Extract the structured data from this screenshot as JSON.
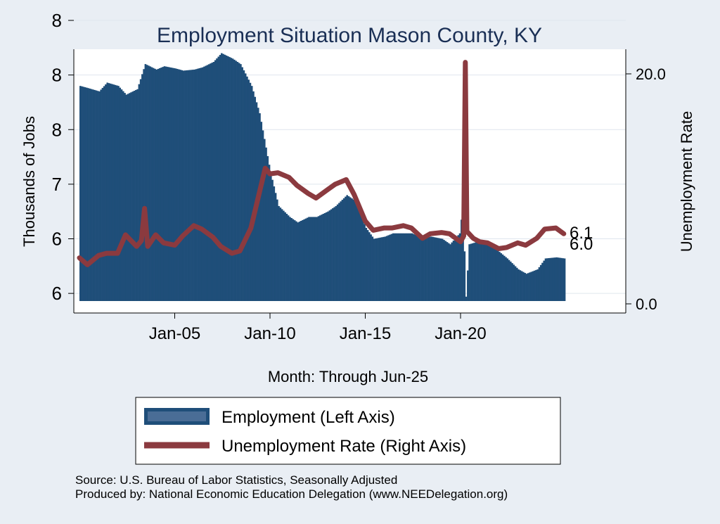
{
  "chart_data": {
    "type": "bar+line",
    "title": "Employment Situation Mason  County, KY",
    "xlabel": "Month: Through Jun-25",
    "ylabel_left": "Thousands of Jobs",
    "ylabel_right": "Unemployment Rate",
    "x_range": [
      "Jan-00",
      "Jun-25"
    ],
    "x_ticks": [
      "Jan-05",
      "Jan-10",
      "Jan-15",
      "Jan-20"
    ],
    "y_left_range": [
      5.93,
      8.12
    ],
    "y_left_tick_values": [
      6.0,
      6.5,
      7.0,
      7.5,
      8.0,
      8.5
    ],
    "y_left_tick_labels": [
      "6",
      "6",
      "7",
      "8",
      "8",
      "8"
    ],
    "y_right_range": [
      0,
      22.4
    ],
    "y_right_ticks": [
      0.0,
      20.0
    ],
    "y_right_tick_labels": [
      "0.0",
      "20.0"
    ],
    "grid": true,
    "legend_position": "bottom",
    "series": [
      {
        "name": "Employment (Left Axis)",
        "type": "bar",
        "axis": "left",
        "color": "#1f4e79",
        "points": [
          [
            "2000-01",
            7.9
          ],
          [
            "2000-06",
            7.88
          ],
          [
            "2001-01",
            7.85
          ],
          [
            "2001-06",
            7.93
          ],
          [
            "2002-01",
            7.9
          ],
          [
            "2002-06",
            7.82
          ],
          [
            "2003-01",
            7.87
          ],
          [
            "2003-06",
            8.1
          ],
          [
            "2004-01",
            8.05
          ],
          [
            "2004-06",
            8.08
          ],
          [
            "2005-01",
            8.06
          ],
          [
            "2005-06",
            8.04
          ],
          [
            "2006-01",
            8.05
          ],
          [
            "2006-06",
            8.07
          ],
          [
            "2007-01",
            8.12
          ],
          [
            "2007-06",
            8.2
          ],
          [
            "2008-01",
            8.15
          ],
          [
            "2008-06",
            8.1
          ],
          [
            "2009-01",
            7.9
          ],
          [
            "2009-06",
            7.65
          ],
          [
            "2010-01",
            7.1
          ],
          [
            "2010-06",
            6.8
          ],
          [
            "2011-01",
            6.7
          ],
          [
            "2011-06",
            6.65
          ],
          [
            "2012-01",
            6.7
          ],
          [
            "2012-06",
            6.7
          ],
          [
            "2013-01",
            6.75
          ],
          [
            "2013-06",
            6.8
          ],
          [
            "2014-01",
            6.9
          ],
          [
            "2014-06",
            6.85
          ],
          [
            "2015-01",
            6.6
          ],
          [
            "2015-06",
            6.5
          ],
          [
            "2016-01",
            6.52
          ],
          [
            "2016-06",
            6.55
          ],
          [
            "2017-01",
            6.55
          ],
          [
            "2017-06",
            6.55
          ],
          [
            "2018-01",
            6.5
          ],
          [
            "2018-06",
            6.52
          ],
          [
            "2019-01",
            6.5
          ],
          [
            "2019-06",
            6.45
          ],
          [
            "2019-12",
            6.55
          ],
          [
            "2020-02",
            6.8
          ],
          [
            "2020-04",
            5.97
          ],
          [
            "2020-06",
            6.45
          ],
          [
            "2021-01",
            6.48
          ],
          [
            "2021-06",
            6.45
          ],
          [
            "2022-01",
            6.38
          ],
          [
            "2022-06",
            6.32
          ],
          [
            "2023-01",
            6.22
          ],
          [
            "2023-06",
            6.18
          ],
          [
            "2024-01",
            6.22
          ],
          [
            "2024-06",
            6.32
          ],
          [
            "2025-01",
            6.33
          ],
          [
            "2025-06",
            6.32
          ]
        ]
      },
      {
        "name": "Unemployment Rate (Right Axis)",
        "type": "line",
        "axis": "right",
        "color": "#8b3a3f",
        "points": [
          [
            "2000-01",
            4.0
          ],
          [
            "2000-06",
            3.4
          ],
          [
            "2001-01",
            4.2
          ],
          [
            "2001-06",
            4.4
          ],
          [
            "2002-01",
            4.4
          ],
          [
            "2002-06",
            6.0
          ],
          [
            "2003-01",
            5.0
          ],
          [
            "2003-04",
            5.5
          ],
          [
            "2003-06",
            8.3
          ],
          [
            "2003-08",
            5.0
          ],
          [
            "2004-01",
            6.0
          ],
          [
            "2004-06",
            5.3
          ],
          [
            "2005-01",
            5.1
          ],
          [
            "2005-06",
            5.9
          ],
          [
            "2006-01",
            6.8
          ],
          [
            "2006-06",
            6.5
          ],
          [
            "2007-01",
            5.8
          ],
          [
            "2007-06",
            5.0
          ],
          [
            "2008-01",
            4.4
          ],
          [
            "2008-06",
            4.6
          ],
          [
            "2009-01",
            6.6
          ],
          [
            "2009-06",
            9.5
          ],
          [
            "2009-10",
            11.8
          ],
          [
            "2010-01",
            11.3
          ],
          [
            "2010-06",
            11.4
          ],
          [
            "2011-01",
            11.0
          ],
          [
            "2011-06",
            10.3
          ],
          [
            "2012-01",
            9.6
          ],
          [
            "2012-06",
            9.2
          ],
          [
            "2013-01",
            9.9
          ],
          [
            "2013-06",
            10.4
          ],
          [
            "2014-01",
            10.8
          ],
          [
            "2014-06",
            9.5
          ],
          [
            "2015-01",
            7.2
          ],
          [
            "2015-06",
            6.4
          ],
          [
            "2016-01",
            6.6
          ],
          [
            "2016-06",
            6.6
          ],
          [
            "2017-01",
            6.8
          ],
          [
            "2017-06",
            6.6
          ],
          [
            "2018-01",
            5.7
          ],
          [
            "2018-06",
            6.1
          ],
          [
            "2019-01",
            6.2
          ],
          [
            "2019-06",
            6.1
          ],
          [
            "2020-01",
            5.4
          ],
          [
            "2020-03",
            5.9
          ],
          [
            "2020-04",
            21.0
          ],
          [
            "2020-05",
            6.3
          ],
          [
            "2020-09",
            5.7
          ],
          [
            "2021-01",
            5.4
          ],
          [
            "2021-06",
            5.3
          ],
          [
            "2022-01",
            4.8
          ],
          [
            "2022-06",
            4.9
          ],
          [
            "2023-01",
            5.3
          ],
          [
            "2023-06",
            5.1
          ],
          [
            "2024-01",
            5.7
          ],
          [
            "2024-06",
            6.5
          ],
          [
            "2025-01",
            6.6
          ],
          [
            "2025-06",
            6.1
          ]
        ]
      }
    ],
    "annotations": [
      "6.1",
      "6.0"
    ],
    "legend": [
      "Employment (Left Axis)",
      "Unemployment Rate (Right Axis)"
    ]
  },
  "footer": {
    "source": "Source: U.S. Bureau of Labor Statistics, Seasonally Adjusted",
    "produced": "Produced by: National Economic Education Delegation (www.NEEDelegation.org)"
  },
  "colors": {
    "background": "#e9eef4",
    "plot_background": "#ffffff",
    "bars": "#1f4e79",
    "line": "#8b3a3f"
  }
}
